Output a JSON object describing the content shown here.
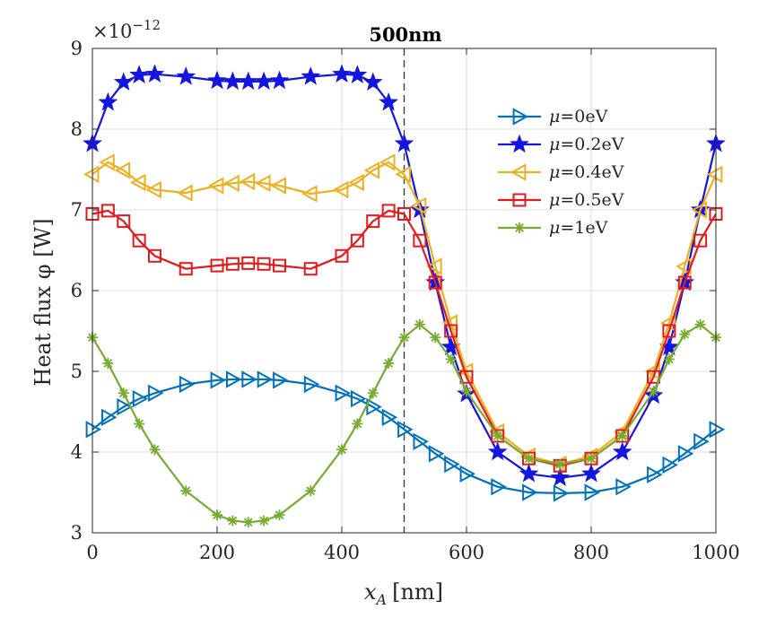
{
  "chart_data": {
    "type": "line",
    "title": "500nm",
    "xlabel": "x",
    "xlabel_sub": "A",
    "xlabel_unit": "[nm]",
    "ylabel": "Heat flux φ [W]",
    "exponent_base": "×10",
    "exponent_power": "−12",
    "xlim": [
      0,
      1000
    ],
    "ylim": [
      3,
      9
    ],
    "xticks": [
      "0",
      "200",
      "400",
      "600",
      "800",
      "1000"
    ],
    "yticks": [
      "3",
      "4",
      "5",
      "6",
      "7",
      "8",
      "9"
    ],
    "grid": true,
    "vline": {
      "x": 500,
      "style": "dashed"
    },
    "legend_position": "right-upper",
    "series": [
      {
        "name": "μ=0eV",
        "mu": "μ",
        "suffix": "=0eV",
        "color": "#0072BD",
        "marker": "triangle-right",
        "x": [
          0,
          25,
          50,
          75,
          100,
          150,
          200,
          225,
          250,
          275,
          300,
          350,
          400,
          425,
          450,
          475,
          500,
          525,
          550,
          575,
          600,
          650,
          700,
          750,
          800,
          850,
          900,
          925,
          950,
          975,
          1000
        ],
        "y": [
          4.28,
          4.43,
          4.56,
          4.66,
          4.73,
          4.84,
          4.89,
          4.9,
          4.9,
          4.9,
          4.89,
          4.84,
          4.73,
          4.66,
          4.56,
          4.43,
          4.28,
          4.13,
          3.98,
          3.85,
          3.73,
          3.57,
          3.5,
          3.49,
          3.5,
          3.57,
          3.72,
          3.84,
          3.98,
          4.13,
          4.28
        ]
      },
      {
        "name": "μ=0.2eV",
        "mu": "μ",
        "suffix": "=0.2eV",
        "color": "#1515E0",
        "marker": "star",
        "x": [
          0,
          25,
          50,
          75,
          100,
          150,
          200,
          225,
          250,
          275,
          300,
          350,
          400,
          425,
          450,
          475,
          500,
          525,
          550,
          575,
          600,
          650,
          700,
          750,
          800,
          850,
          900,
          925,
          950,
          975,
          1000
        ],
        "y": [
          7.82,
          8.33,
          8.58,
          8.67,
          8.68,
          8.65,
          8.6,
          8.59,
          8.59,
          8.59,
          8.6,
          8.65,
          8.68,
          8.67,
          8.58,
          8.33,
          7.82,
          7.0,
          6.1,
          5.3,
          4.72,
          4.0,
          3.73,
          3.68,
          3.73,
          4.0,
          4.7,
          5.3,
          6.1,
          7.0,
          7.82
        ]
      },
      {
        "name": "μ=0.4eV",
        "mu": "μ",
        "suffix": "=0.4eV",
        "color": "#EDB120",
        "marker": "triangle-left",
        "x": [
          0,
          25,
          50,
          75,
          100,
          150,
          200,
          225,
          250,
          275,
          300,
          350,
          400,
          425,
          450,
          475,
          500,
          525,
          550,
          575,
          600,
          650,
          700,
          750,
          800,
          850,
          900,
          925,
          950,
          975,
          1000
        ],
        "y": [
          7.44,
          7.59,
          7.49,
          7.34,
          7.25,
          7.21,
          7.3,
          7.33,
          7.35,
          7.33,
          7.3,
          7.2,
          7.25,
          7.34,
          7.49,
          7.59,
          7.44,
          7.05,
          6.3,
          5.6,
          5.0,
          4.25,
          3.95,
          3.85,
          3.95,
          4.25,
          5.0,
          5.6,
          6.3,
          7.0,
          7.44
        ]
      },
      {
        "name": "μ=0.5eV",
        "mu": "μ",
        "suffix": "=0.5eV",
        "color": "#E31A1C",
        "marker": "square",
        "x": [
          0,
          25,
          50,
          75,
          100,
          150,
          200,
          225,
          250,
          275,
          300,
          350,
          400,
          425,
          450,
          475,
          500,
          525,
          550,
          575,
          600,
          650,
          700,
          750,
          800,
          850,
          900,
          925,
          950,
          975,
          1000
        ],
        "y": [
          6.95,
          6.99,
          6.86,
          6.62,
          6.43,
          6.27,
          6.31,
          6.33,
          6.34,
          6.33,
          6.31,
          6.27,
          6.43,
          6.62,
          6.86,
          6.99,
          6.95,
          6.62,
          6.1,
          5.5,
          4.93,
          4.2,
          3.92,
          3.83,
          3.92,
          4.2,
          4.93,
          5.5,
          6.1,
          6.62,
          6.95
        ]
      },
      {
        "name": "μ=1eV",
        "mu": "μ",
        "suffix": "=1eV",
        "color": "#77AC30",
        "marker": "asterisk",
        "x": [
          0,
          25,
          50,
          75,
          100,
          150,
          200,
          225,
          250,
          275,
          300,
          350,
          400,
          425,
          450,
          475,
          500,
          525,
          550,
          575,
          600,
          650,
          700,
          750,
          800,
          850,
          900,
          925,
          950,
          975,
          1000
        ],
        "y": [
          5.42,
          5.1,
          4.73,
          4.35,
          4.03,
          3.52,
          3.22,
          3.15,
          3.13,
          3.15,
          3.22,
          3.52,
          4.03,
          4.35,
          4.73,
          5.1,
          5.42,
          5.58,
          5.42,
          5.15,
          4.75,
          4.2,
          3.92,
          3.85,
          3.92,
          4.2,
          4.75,
          5.15,
          5.46,
          5.58,
          5.42
        ]
      }
    ]
  }
}
